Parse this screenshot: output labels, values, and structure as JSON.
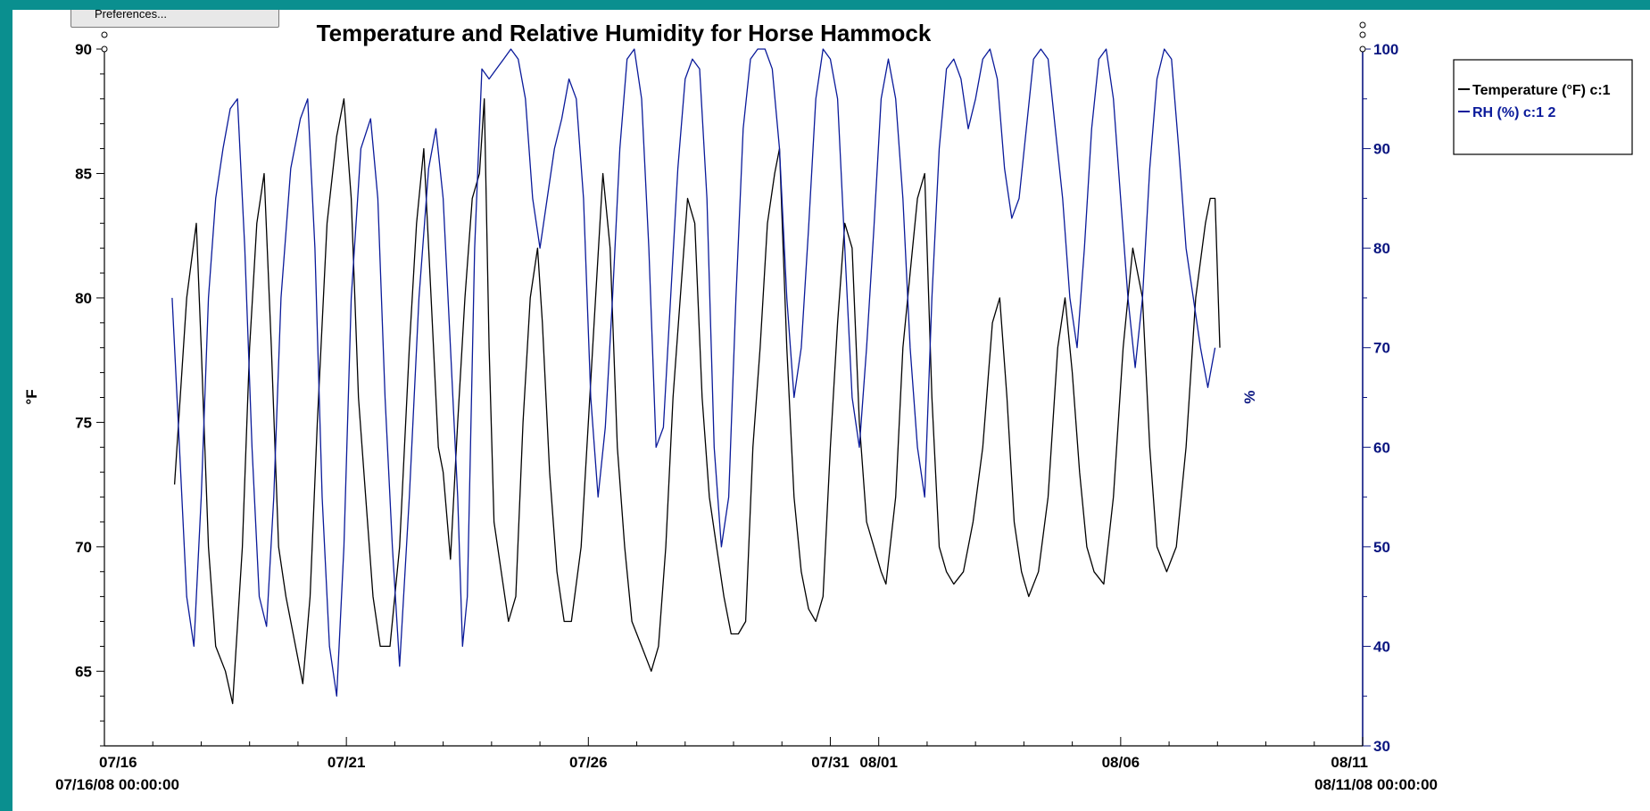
{
  "window": {
    "preferences_label": "Preferences..."
  },
  "colors": {
    "temperature": "#000000",
    "humidity": "#0a1a9a",
    "frame": "#0a8f8f"
  },
  "chart_data": {
    "type": "line",
    "title": "Temperature and Relative Humidity for Horse Hammock",
    "ylabel_left": "°F",
    "ylabel_right": "%",
    "ylim_left": [
      62,
      90
    ],
    "ylim_right": [
      30,
      100
    ],
    "xlim_days": [
      0,
      26
    ],
    "x_ticks": [
      {
        "day": 0,
        "label": "07/16",
        "sub": "07/16/08 00:00:00"
      },
      {
        "day": 5,
        "label": "07/21",
        "sub": ""
      },
      {
        "day": 10,
        "label": "07/26",
        "sub": ""
      },
      {
        "day": 15,
        "label": "07/31",
        "sub": ""
      },
      {
        "day": 16,
        "label": "08/01",
        "sub": ""
      },
      {
        "day": 21,
        "label": "08/06",
        "sub": ""
      },
      {
        "day": 26,
        "label": "08/11",
        "sub": "08/11/08 00:00:00"
      }
    ],
    "y_ticks_left": [
      65,
      70,
      75,
      80,
      85,
      90
    ],
    "y_ticks_right": [
      30,
      40,
      50,
      60,
      70,
      80,
      90,
      100
    ],
    "legend_position": "top-right",
    "series": [
      {
        "name": "Temperature (°F) c:1",
        "axis": "left",
        "points": [
          [
            1.45,
            72.5
          ],
          [
            1.7,
            80
          ],
          [
            1.9,
            83
          ],
          [
            2.0,
            78
          ],
          [
            2.15,
            70
          ],
          [
            2.3,
            66
          ],
          [
            2.5,
            65
          ],
          [
            2.65,
            63.7
          ],
          [
            2.85,
            70
          ],
          [
            3.0,
            78
          ],
          [
            3.15,
            83
          ],
          [
            3.3,
            85
          ],
          [
            3.45,
            78
          ],
          [
            3.6,
            70
          ],
          [
            3.75,
            68
          ],
          [
            3.95,
            66
          ],
          [
            4.1,
            64.5
          ],
          [
            4.25,
            68
          ],
          [
            4.4,
            75
          ],
          [
            4.6,
            83
          ],
          [
            4.8,
            86.5
          ],
          [
            4.95,
            88
          ],
          [
            5.1,
            84
          ],
          [
            5.25,
            76
          ],
          [
            5.4,
            72
          ],
          [
            5.55,
            68
          ],
          [
            5.7,
            66
          ],
          [
            5.9,
            66
          ],
          [
            6.1,
            70
          ],
          [
            6.3,
            78
          ],
          [
            6.45,
            83
          ],
          [
            6.6,
            86
          ],
          [
            6.75,
            80
          ],
          [
            6.9,
            74
          ],
          [
            7.0,
            73
          ],
          [
            7.15,
            69.5
          ],
          [
            7.3,
            75
          ],
          [
            7.45,
            80
          ],
          [
            7.6,
            84
          ],
          [
            7.75,
            85
          ],
          [
            7.85,
            88
          ],
          [
            7.95,
            78
          ],
          [
            8.05,
            71
          ],
          [
            8.2,
            69
          ],
          [
            8.35,
            67
          ],
          [
            8.5,
            68
          ],
          [
            8.65,
            75
          ],
          [
            8.8,
            80
          ],
          [
            8.95,
            82
          ],
          [
            9.05,
            79
          ],
          [
            9.2,
            73
          ],
          [
            9.35,
            69
          ],
          [
            9.5,
            67
          ],
          [
            9.65,
            67
          ],
          [
            9.85,
            70
          ],
          [
            10.0,
            75
          ],
          [
            10.15,
            80
          ],
          [
            10.3,
            85
          ],
          [
            10.45,
            82
          ],
          [
            10.6,
            74
          ],
          [
            10.75,
            70
          ],
          [
            10.9,
            67
          ],
          [
            11.1,
            66
          ],
          [
            11.3,
            65
          ],
          [
            11.45,
            66
          ],
          [
            11.6,
            70
          ],
          [
            11.75,
            76
          ],
          [
            11.9,
            80
          ],
          [
            12.05,
            84
          ],
          [
            12.2,
            83
          ],
          [
            12.35,
            76
          ],
          [
            12.5,
            72
          ],
          [
            12.65,
            70
          ],
          [
            12.8,
            68
          ],
          [
            12.95,
            66.5
          ],
          [
            13.1,
            66.5
          ],
          [
            13.25,
            67
          ],
          [
            13.4,
            74
          ],
          [
            13.55,
            78
          ],
          [
            13.7,
            83
          ],
          [
            13.85,
            85
          ],
          [
            13.95,
            86
          ],
          [
            14.1,
            78
          ],
          [
            14.25,
            72
          ],
          [
            14.4,
            69
          ],
          [
            14.55,
            67.5
          ],
          [
            14.7,
            67
          ],
          [
            14.85,
            68
          ],
          [
            15.0,
            74
          ],
          [
            15.15,
            79
          ],
          [
            15.3,
            83
          ],
          [
            15.45,
            82
          ],
          [
            15.6,
            75
          ],
          [
            15.75,
            71
          ],
          [
            15.9,
            70
          ],
          [
            16.05,
            69
          ],
          [
            16.15,
            68.5
          ],
          [
            16.35,
            72
          ],
          [
            16.5,
            78
          ],
          [
            16.65,
            81
          ],
          [
            16.8,
            84
          ],
          [
            16.95,
            85
          ],
          [
            17.1,
            76
          ],
          [
            17.25,
            70
          ],
          [
            17.4,
            69
          ],
          [
            17.55,
            68.5
          ],
          [
            17.75,
            69
          ],
          [
            17.95,
            71
          ],
          [
            18.15,
            74
          ],
          [
            18.35,
            79
          ],
          [
            18.5,
            80
          ],
          [
            18.65,
            76
          ],
          [
            18.8,
            71
          ],
          [
            18.95,
            69
          ],
          [
            19.1,
            68
          ],
          [
            19.3,
            69
          ],
          [
            19.5,
            72
          ],
          [
            19.7,
            78
          ],
          [
            19.85,
            80
          ],
          [
            20.0,
            77
          ],
          [
            20.15,
            73
          ],
          [
            20.3,
            70
          ],
          [
            20.45,
            69
          ],
          [
            20.65,
            68.5
          ],
          [
            20.85,
            72
          ],
          [
            21.05,
            78
          ],
          [
            21.25,
            82
          ],
          [
            21.45,
            80
          ],
          [
            21.6,
            74
          ],
          [
            21.75,
            70
          ],
          [
            21.95,
            69
          ],
          [
            22.15,
            70
          ],
          [
            22.35,
            74
          ],
          [
            22.55,
            80
          ],
          [
            22.75,
            83
          ],
          [
            22.85,
            84
          ],
          [
            22.95,
            84
          ],
          [
            23.05,
            78
          ]
        ]
      },
      {
        "name": "RH (%) c:1 2",
        "axis": "right",
        "points": [
          [
            1.4,
            75
          ],
          [
            1.55,
            60
          ],
          [
            1.7,
            45
          ],
          [
            1.85,
            40
          ],
          [
            2.0,
            55
          ],
          [
            2.15,
            75
          ],
          [
            2.3,
            85
          ],
          [
            2.45,
            90
          ],
          [
            2.6,
            94
          ],
          [
            2.75,
            95
          ],
          [
            2.9,
            80
          ],
          [
            3.05,
            60
          ],
          [
            3.2,
            45
          ],
          [
            3.35,
            42
          ],
          [
            3.5,
            55
          ],
          [
            3.65,
            75
          ],
          [
            3.85,
            88
          ],
          [
            4.05,
            93
          ],
          [
            4.2,
            95
          ],
          [
            4.35,
            80
          ],
          [
            4.5,
            55
          ],
          [
            4.65,
            40
          ],
          [
            4.8,
            35
          ],
          [
            4.95,
            50
          ],
          [
            5.1,
            75
          ],
          [
            5.3,
            90
          ],
          [
            5.5,
            93
          ],
          [
            5.65,
            85
          ],
          [
            5.8,
            65
          ],
          [
            5.95,
            50
          ],
          [
            6.1,
            38
          ],
          [
            6.3,
            55
          ],
          [
            6.5,
            75
          ],
          [
            6.7,
            88
          ],
          [
            6.85,
            92
          ],
          [
            7.0,
            85
          ],
          [
            7.15,
            70
          ],
          [
            7.3,
            55
          ],
          [
            7.4,
            40
          ],
          [
            7.5,
            45
          ],
          [
            7.65,
            80
          ],
          [
            7.8,
            98
          ],
          [
            7.95,
            97
          ],
          [
            8.1,
            98
          ],
          [
            8.25,
            99
          ],
          [
            8.4,
            100
          ],
          [
            8.55,
            99
          ],
          [
            8.7,
            95
          ],
          [
            8.85,
            85
          ],
          [
            9.0,
            80
          ],
          [
            9.15,
            85
          ],
          [
            9.3,
            90
          ],
          [
            9.45,
            93
          ],
          [
            9.6,
            97
          ],
          [
            9.75,
            95
          ],
          [
            9.9,
            85
          ],
          [
            10.05,
            65
          ],
          [
            10.2,
            55
          ],
          [
            10.35,
            62
          ],
          [
            10.5,
            75
          ],
          [
            10.65,
            90
          ],
          [
            10.8,
            99
          ],
          [
            10.95,
            100
          ],
          [
            11.1,
            95
          ],
          [
            11.25,
            80
          ],
          [
            11.4,
            60
          ],
          [
            11.55,
            62
          ],
          [
            11.7,
            75
          ],
          [
            11.85,
            88
          ],
          [
            12.0,
            97
          ],
          [
            12.15,
            99
          ],
          [
            12.3,
            98
          ],
          [
            12.45,
            85
          ],
          [
            12.6,
            60
          ],
          [
            12.75,
            50
          ],
          [
            12.9,
            55
          ],
          [
            13.05,
            75
          ],
          [
            13.2,
            92
          ],
          [
            13.35,
            99
          ],
          [
            13.5,
            100
          ],
          [
            13.65,
            100
          ],
          [
            13.8,
            98
          ],
          [
            13.95,
            90
          ],
          [
            14.1,
            75
          ],
          [
            14.25,
            65
          ],
          [
            14.4,
            70
          ],
          [
            14.55,
            82
          ],
          [
            14.7,
            95
          ],
          [
            14.85,
            100
          ],
          [
            15.0,
            99
          ],
          [
            15.15,
            95
          ],
          [
            15.3,
            80
          ],
          [
            15.45,
            65
          ],
          [
            15.6,
            60
          ],
          [
            15.75,
            70
          ],
          [
            15.9,
            82
          ],
          [
            16.05,
            95
          ],
          [
            16.2,
            99
          ],
          [
            16.35,
            95
          ],
          [
            16.5,
            85
          ],
          [
            16.65,
            70
          ],
          [
            16.8,
            60
          ],
          [
            16.95,
            55
          ],
          [
            17.1,
            75
          ],
          [
            17.25,
            90
          ],
          [
            17.4,
            98
          ],
          [
            17.55,
            99
          ],
          [
            17.7,
            97
          ],
          [
            17.85,
            92
          ],
          [
            18.0,
            95
          ],
          [
            18.15,
            99
          ],
          [
            18.3,
            100
          ],
          [
            18.45,
            97
          ],
          [
            18.6,
            88
          ],
          [
            18.75,
            83
          ],
          [
            18.9,
            85
          ],
          [
            19.05,
            92
          ],
          [
            19.2,
            99
          ],
          [
            19.35,
            100
          ],
          [
            19.5,
            99
          ],
          [
            19.65,
            92
          ],
          [
            19.8,
            85
          ],
          [
            19.95,
            75
          ],
          [
            20.1,
            70
          ],
          [
            20.25,
            80
          ],
          [
            20.4,
            92
          ],
          [
            20.55,
            99
          ],
          [
            20.7,
            100
          ],
          [
            20.85,
            95
          ],
          [
            21.0,
            85
          ],
          [
            21.15,
            75
          ],
          [
            21.3,
            68
          ],
          [
            21.45,
            75
          ],
          [
            21.6,
            88
          ],
          [
            21.75,
            97
          ],
          [
            21.9,
            100
          ],
          [
            22.05,
            99
          ],
          [
            22.2,
            90
          ],
          [
            22.35,
            80
          ],
          [
            22.5,
            75
          ],
          [
            22.65,
            70
          ],
          [
            22.8,
            66
          ],
          [
            22.95,
            70
          ]
        ]
      }
    ]
  }
}
